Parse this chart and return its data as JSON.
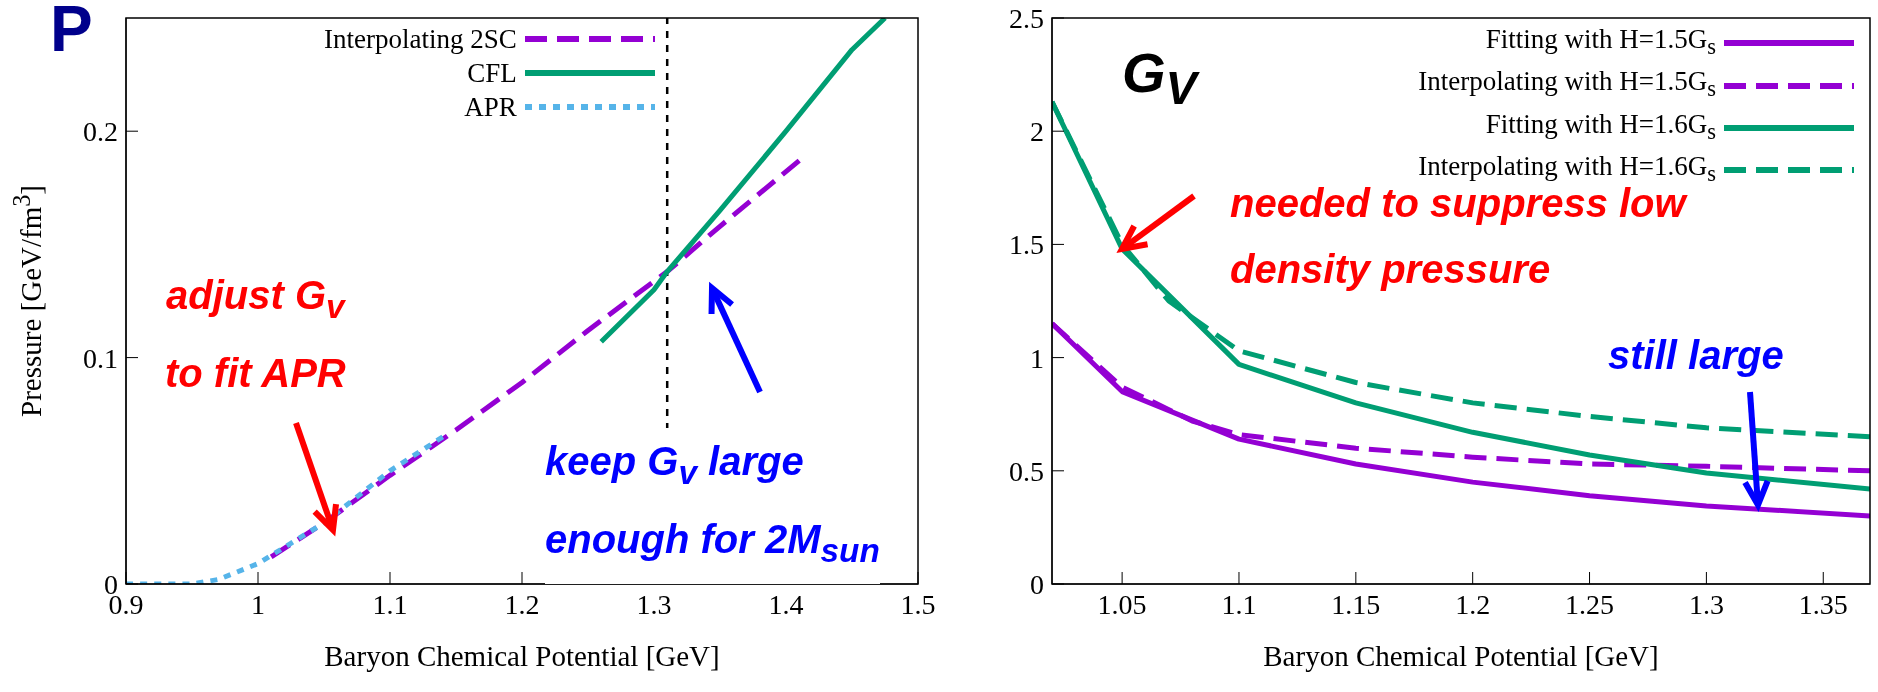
{
  "chart_data": [
    {
      "type": "line",
      "title": "P",
      "xlabel": "Baryon Chemical Potential [GeV]",
      "ylabel": "Pressure [GeV/fm$^{3}$]",
      "xlim": [
        0.9,
        1.5
      ],
      "xticks": [
        0.9,
        1,
        1.1,
        1.2,
        1.3,
        1.4,
        1.5
      ],
      "ylim": [
        0,
        0.25
      ],
      "yticks": [
        0,
        0.1,
        0.2
      ],
      "legend": "top",
      "grid": false,
      "series": [
        {
          "name": "Interpolating 2SC",
          "color": "#9400d3",
          "line_style": "dashed",
          "x": [
            1.01,
            1.05,
            1.1,
            1.15,
            1.2,
            1.25,
            1.31,
            1.35,
            1.41
          ],
          "values": [
            0.012,
            0.027,
            0.048,
            0.068,
            0.089,
            0.112,
            0.138,
            0.158,
            0.187
          ]
        },
        {
          "name": "CFL",
          "color": "#009e73",
          "line_style": "solid",
          "x": [
            1.26,
            1.3,
            1.31,
            1.35,
            1.4,
            1.45,
            1.475
          ],
          "values": [
            0.107,
            0.13,
            0.138,
            0.165,
            0.2,
            0.236,
            0.25
          ]
        },
        {
          "name": "APR",
          "color": "#56b4e9",
          "line_style": "dotted",
          "x": [
            0.9,
            0.95,
            0.97,
            1.0,
            1.05,
            1.1,
            1.14
          ],
          "values": [
            0,
            0,
            0.002,
            0.009,
            0.027,
            0.05,
            0.065
          ]
        }
      ],
      "ref_lines": [
        {
          "axis": "x",
          "value": 1.31,
          "color": "#000000",
          "line_style": "dotted"
        }
      ],
      "annotations": [
        "adjust G$_{v}$\nto fit APR",
        "keep G$_{v}$ large\nenough for 2M$_{sun}$"
      ]
    },
    {
      "type": "line",
      "title": "G$_{V}$",
      "xlabel": "Baryon Chemical Potential [GeV]",
      "xlim": [
        1.02,
        1.37
      ],
      "xticks": [
        1.05,
        1.1,
        1.15,
        1.2,
        1.25,
        1.3,
        1.35
      ],
      "ylim": [
        0,
        2.5
      ],
      "yticks": [
        0,
        0.5,
        1,
        1.5,
        2,
        2.5
      ],
      "legend": "top right",
      "grid": false,
      "series": [
        {
          "name": "Fitting with H=1.5G$_{s}$",
          "color": "#9400d3",
          "line_style": "solid",
          "x": [
            1.02,
            1.05,
            1.1,
            1.15,
            1.2,
            1.25,
            1.3,
            1.37
          ],
          "values": [
            1.15,
            0.85,
            0.64,
            0.53,
            0.45,
            0.39,
            0.345,
            0.3
          ]
        },
        {
          "name": "Interpolating with H=1.5G$_{s}$",
          "color": "#9400d3",
          "line_style": "dashed",
          "x": [
            1.02,
            1.05,
            1.08,
            1.1,
            1.15,
            1.2,
            1.25,
            1.3,
            1.37
          ],
          "values": [
            1.15,
            0.87,
            0.72,
            0.66,
            0.6,
            0.56,
            0.53,
            0.52,
            0.5
          ]
        },
        {
          "name": "Fitting with H=1.6G$_{s}$",
          "color": "#009e73",
          "line_style": "solid",
          "x": [
            1.02,
            1.05,
            1.1,
            1.15,
            1.2,
            1.25,
            1.3,
            1.37
          ],
          "values": [
            2.13,
            1.48,
            0.97,
            0.8,
            0.67,
            0.57,
            0.49,
            0.42
          ]
        },
        {
          "name": "Interpolating with H=1.6G$_{s}$",
          "color": "#009e73",
          "line_style": "dashed",
          "x": [
            1.02,
            1.05,
            1.07,
            1.1,
            1.15,
            1.2,
            1.25,
            1.3,
            1.37
          ],
          "values": [
            2.13,
            1.5,
            1.25,
            1.03,
            0.89,
            0.8,
            0.74,
            0.69,
            0.65
          ]
        }
      ],
      "annotations": [
        {
          "text": "needed to suppress low\ndensity pressure",
          "x": 1.05,
          "y": 1.48
        },
        "still large"
      ]
    }
  ]
}
